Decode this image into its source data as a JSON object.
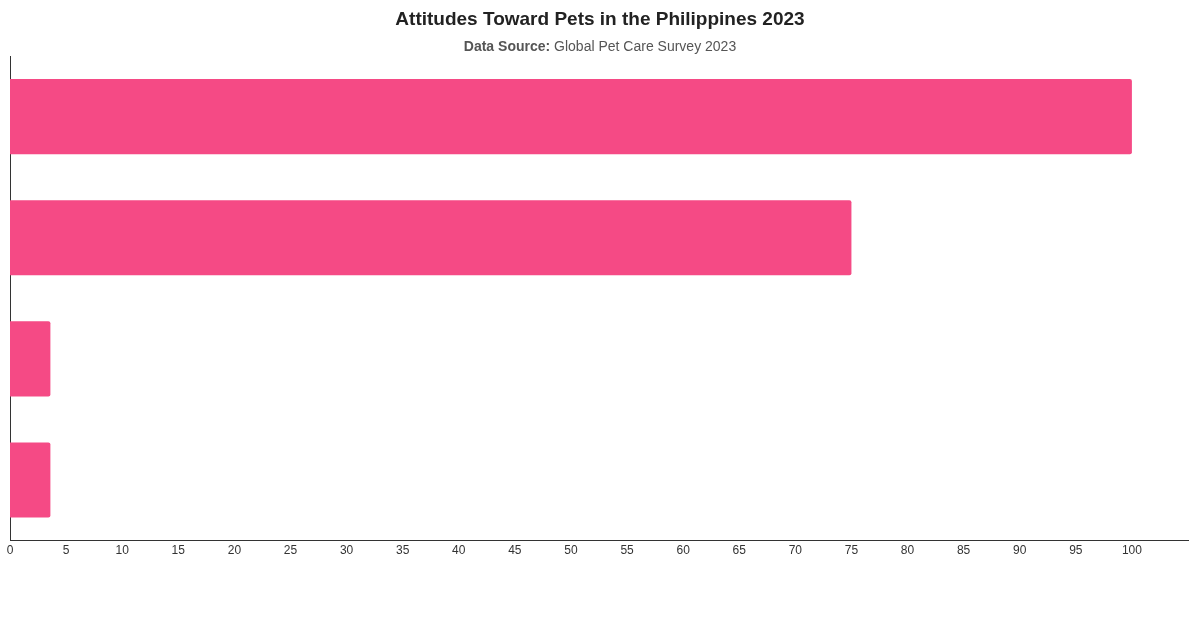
{
  "chart_data": {
    "type": "bar",
    "orientation": "horizontal",
    "title": "Attitudes Toward Pets in the Philippines 2023",
    "subtitle": "Data Source: Global Pet Care Survey 2023",
    "categories": [
      null,
      null,
      null,
      null
    ],
    "values": [
      100,
      75,
      3.6,
      3.6
    ],
    "color": "#f54a85",
    "xlim": [
      0,
      105
    ],
    "xticks": [
      0,
      5,
      10,
      15,
      20,
      25,
      30,
      35,
      40,
      45,
      50,
      55,
      60,
      65,
      70,
      75,
      80,
      85,
      90,
      95,
      100
    ],
    "grid": false,
    "legend": false,
    "tick_labels": "x"
  }
}
